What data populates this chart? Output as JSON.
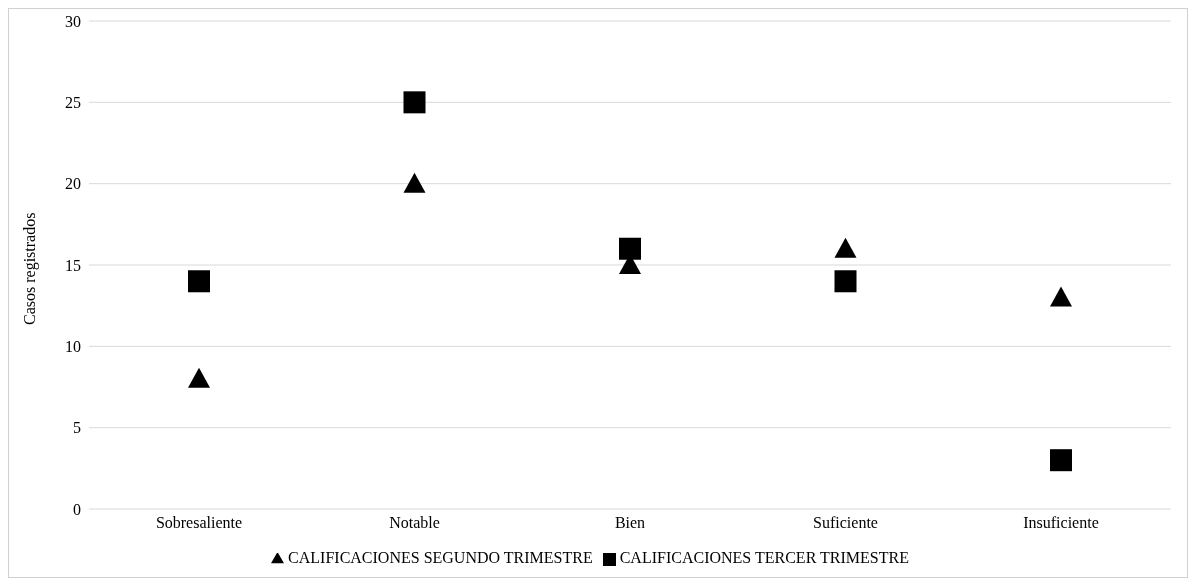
{
  "chart_data": {
    "type": "scatter",
    "ylabel": "Casos registrados",
    "categories": [
      "Sobresaliente",
      "Notable",
      "Bien",
      "Suficiente",
      "Insuficiente"
    ],
    "series": [
      {
        "name": "CALIFICACIONES SEGUNDO TRIMESTRE",
        "color": "#000000",
        "marker": "triangle",
        "values": [
          8,
          20,
          15,
          16,
          13
        ]
      },
      {
        "name": "CALIFICACIONES TERCER TRIMESTRE",
        "color": "#000000",
        "marker": "square",
        "values": [
          14,
          25,
          16,
          14,
          3
        ]
      }
    ],
    "ylim": [
      0,
      30
    ],
    "yticks": [
      0,
      5,
      10,
      15,
      20,
      25,
      30
    ],
    "grid": "y",
    "legend": "bottom"
  }
}
